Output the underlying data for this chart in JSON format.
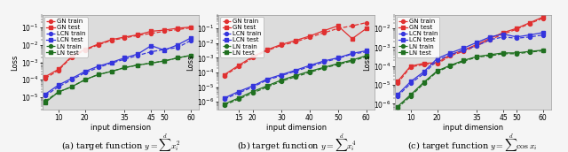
{
  "panels": [
    {
      "caption": "(a) target function $y = \\sum_{i=1}^d x_i^2$",
      "xlim": [
        4,
        63
      ],
      "ylim": [
        2e-06,
        0.5
      ],
      "xticks": [
        10,
        20,
        35,
        45,
        50,
        60
      ],
      "xtick_labels": [
        "10",
        "20",
        "35",
        "45",
        "50",
        "60"
      ],
      "x": [
        5,
        10,
        15,
        20,
        25,
        30,
        35,
        40,
        45,
        50,
        55,
        60
      ],
      "GN_train": [
        0.00012,
        0.00035,
        0.002,
        0.005,
        0.01,
        0.018,
        0.025,
        0.035,
        0.045,
        0.06,
        0.075,
        0.095
      ],
      "GN_test": [
        0.00015,
        0.0004,
        0.0022,
        0.0055,
        0.011,
        0.02,
        0.028,
        0.038,
        0.06,
        0.07,
        0.09,
        0.105
      ],
      "LCN_train": [
        1.2e-05,
        4e-05,
        0.0001,
        0.00025,
        0.0005,
        0.0009,
        0.0015,
        0.0025,
        0.004,
        0.0055,
        0.007,
        0.018
      ],
      "LCN_test": [
        1.5e-05,
        5e-05,
        0.00012,
        0.0003,
        0.0006,
        0.001,
        0.0018,
        0.003,
        0.009,
        0.005,
        0.01,
        0.025
      ],
      "LN_train": [
        6e-06,
        2e-05,
        4e-05,
        0.0001,
        0.0002,
        0.0003,
        0.0005,
        0.0007,
        0.0009,
        0.0012,
        0.0018,
        0.0025
      ],
      "LN_test": [
        5e-06,
        2e-05,
        4e-05,
        0.0001,
        0.0002,
        0.0003,
        0.0005,
        0.0007,
        0.0009,
        0.0012,
        0.0018,
        0.0025
      ]
    },
    {
      "caption": "(b) target function $y = \\sum_{i=1}^d x_i^4$",
      "xlim": [
        8,
        63
      ],
      "ylim": [
        3e-07,
        0.8
      ],
      "xticks": [
        15,
        20,
        30,
        40,
        50,
        60
      ],
      "xtick_labels": [
        "15",
        "20",
        "30",
        "40",
        "50",
        "60"
      ],
      "x": [
        10,
        15,
        20,
        25,
        30,
        35,
        40,
        45,
        50,
        55,
        60
      ],
      "GN_train": [
        6e-05,
        0.00025,
        0.001,
        0.003,
        0.007,
        0.012,
        0.025,
        0.05,
        0.1,
        0.15,
        0.25
      ],
      "GN_test": [
        7e-05,
        0.0003,
        0.0012,
        0.0035,
        0.008,
        0.015,
        0.03,
        0.07,
        0.15,
        0.02,
        0.1
      ],
      "LCN_train": [
        1.5e-06,
        4e-06,
        1e-05,
        3e-05,
        6e-05,
        0.00012,
        0.00025,
        0.0005,
        0.0009,
        0.0018,
        0.0025
      ],
      "LCN_test": [
        1.8e-06,
        5e-06,
        1.2e-05,
        3.5e-05,
        7e-05,
        0.00014,
        0.0003,
        0.0006,
        0.001,
        0.002,
        0.003
      ],
      "LN_train": [
        6e-07,
        1.5e-06,
        4e-06,
        1e-05,
        2.5e-05,
        5e-05,
        0.0001,
        0.0002,
        0.00035,
        0.0006,
        0.0012
      ],
      "LN_test": [
        7e-07,
        1.8e-06,
        5e-06,
        1.2e-05,
        3e-05,
        6e-05,
        0.00012,
        0.00022,
        0.0004,
        0.0007,
        0.0014
      ]
    },
    {
      "caption": "(c) target function $y = \\sum_{i=1}^d \\cos x_i$",
      "xlim": [
        4,
        63
      ],
      "ylim": [
        5e-07,
        0.05
      ],
      "xticks": [
        10,
        20,
        35,
        45,
        50,
        60
      ],
      "xtick_labels": [
        "10",
        "20",
        "35",
        "45",
        "50",
        "60"
      ],
      "x": [
        5,
        10,
        15,
        20,
        25,
        30,
        35,
        40,
        45,
        50,
        55,
        60
      ],
      "GN_train": [
        1.2e-05,
        9e-05,
        0.00012,
        0.00013,
        0.00035,
        0.0006,
        0.0012,
        0.0025,
        0.005,
        0.009,
        0.018,
        0.035
      ],
      "GN_test": [
        1.5e-05,
        0.0001,
        0.00014,
        0.00015,
        0.0004,
        0.0007,
        0.0014,
        0.003,
        0.006,
        0.01,
        0.02,
        0.04
      ],
      "LCN_train": [
        2.5e-06,
        1.2e-05,
        4e-05,
        0.0002,
        0.0004,
        0.0007,
        0.0012,
        0.0025,
        0.0035,
        0.003,
        0.0035,
        0.0045
      ],
      "LCN_test": [
        3e-06,
        1.5e-05,
        5e-05,
        0.00025,
        0.0005,
        0.0009,
        0.0018,
        0.0035,
        0.005,
        0.0035,
        0.0045,
        0.006
      ],
      "LN_train": [
        6e-07,
        2.5e-06,
        1.2e-05,
        5e-05,
        0.0001,
        0.00018,
        0.0003,
        0.00035,
        0.00045,
        0.00045,
        0.00055,
        0.00065
      ],
      "LN_test": [
        7e-07,
        3e-06,
        1.4e-05,
        5.5e-05,
        0.00011,
        0.0002,
        0.00032,
        0.0004,
        0.0005,
        0.0005,
        0.0006,
        0.0007
      ]
    }
  ],
  "colors": {
    "GN": "#e03030",
    "LCN": "#3535dd",
    "LN": "#207020"
  },
  "ylabel": "Loss",
  "xlabel": "input dimension",
  "plot_bg": "#dcdcdc",
  "fig_bg": "#f5f5f5",
  "lw": 0.9,
  "ms": 2.8
}
